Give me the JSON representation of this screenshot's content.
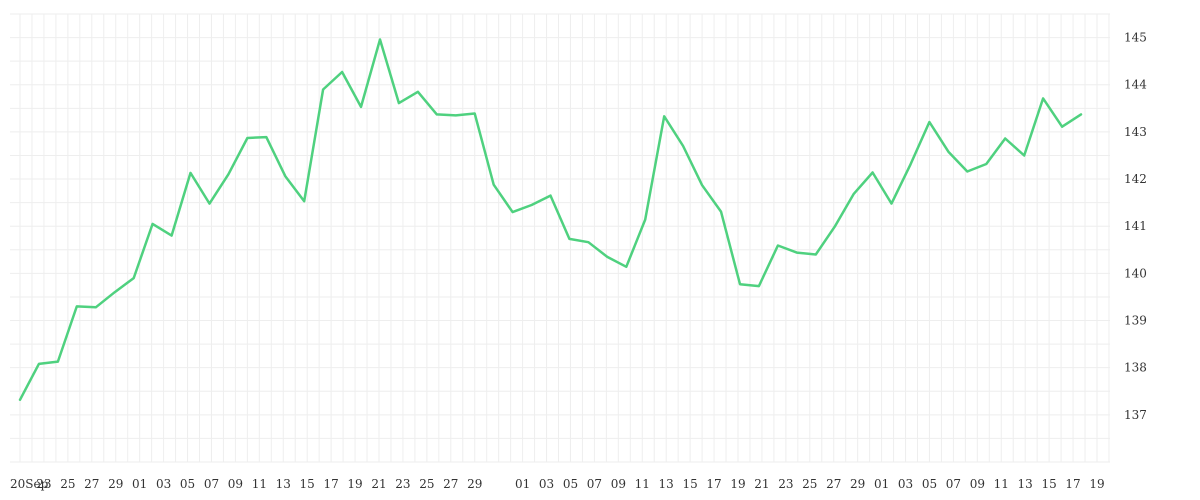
{
  "colors": {
    "line": "#4fd17f",
    "grid": "#eeeeee",
    "text": "#333333"
  },
  "chart_data": {
    "type": "line",
    "title": "",
    "xlabel": "",
    "ylabel": "",
    "grid": true,
    "y_axis_side": "right",
    "ylim": [
      136,
      145.5
    ],
    "y_ticks": [
      137,
      138,
      139,
      140,
      141,
      142,
      143,
      144,
      145
    ],
    "x_tick_labels": [
      "20Sep",
      "23",
      "25",
      "27",
      "29",
      "01",
      "03",
      "05",
      "07",
      "09",
      "11",
      "13",
      "15",
      "17",
      "19",
      "21",
      "23",
      "25",
      "27",
      "29",
      "",
      "01",
      "03",
      "05",
      "07",
      "09",
      "11",
      "13",
      "15",
      "17",
      "19",
      "21",
      "23",
      "25",
      "27",
      "29",
      "01",
      "03",
      "05",
      "07",
      "09",
      "11",
      "13",
      "15",
      "17",
      "19"
    ],
    "series": [
      {
        "values": [
          137.32,
          138.08,
          138.13,
          139.3,
          139.28,
          139.6,
          139.9,
          141.05,
          140.8,
          142.13,
          141.48,
          142.1,
          142.87,
          142.89,
          142.06,
          141.53,
          143.9,
          144.27,
          143.53,
          144.96,
          143.61,
          143.85,
          143.37,
          143.35,
          143.39,
          141.88,
          141.3,
          141.45,
          141.65,
          140.73,
          140.66,
          140.35,
          140.14,
          141.14,
          143.33,
          142.7,
          141.87,
          141.31,
          139.77,
          139.73,
          140.59,
          140.44,
          140.4,
          140.99,
          141.68,
          142.14,
          141.48,
          142.31,
          143.21,
          142.58,
          142.16,
          142.32,
          142.86,
          142.5,
          143.71,
          143.11,
          143.37
        ]
      }
    ]
  }
}
